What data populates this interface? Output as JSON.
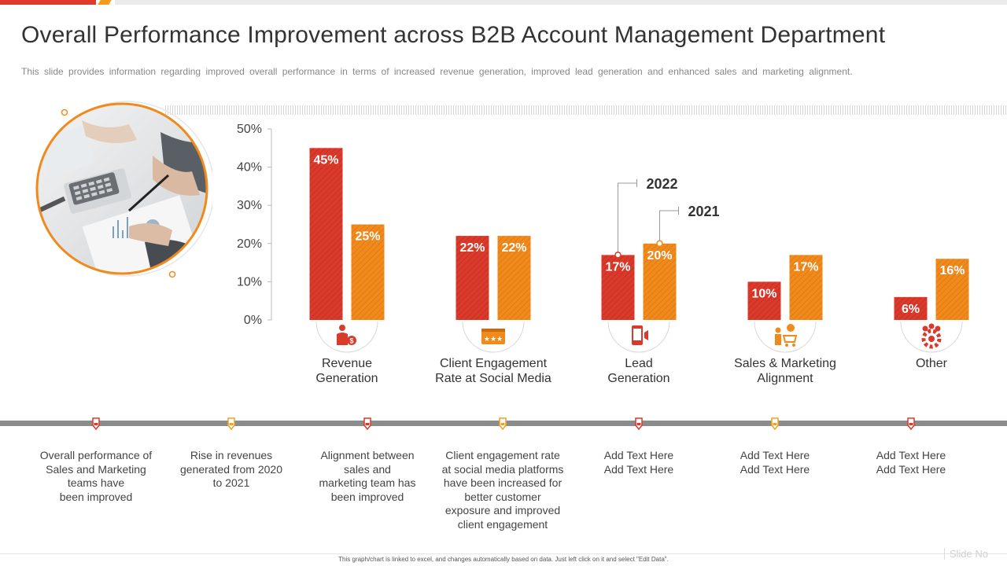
{
  "header": {
    "title": "Overall Performance Improvement across B2B Account Management Department",
    "subtitle": "This slide provides information regarding improved overall performance in terms of increased revenue generation, improved lead generation and enhanced sales and marketing alignment."
  },
  "chart_data": {
    "type": "bar",
    "categories": [
      "Revenue\nGeneration",
      "Client Engagement\nRate at Social Media",
      "Lead\nGeneration",
      "Sales & Marketing\nAlignment",
      "Other"
    ],
    "category_icons": [
      "businessman-money-icon",
      "rating-stars-icon",
      "mobile-marketing-icon",
      "shopping-cart-person-icon",
      "team-gear-icon"
    ],
    "series": [
      {
        "name": "2022",
        "values": [
          45,
          22,
          17,
          10,
          6
        ],
        "color": "#d93a2b"
      },
      {
        "name": "2021",
        "values": [
          25,
          22,
          20,
          17,
          16
        ],
        "color": "#f08a1c"
      }
    ],
    "y_ticks": [
      "0%",
      "10%",
      "20%",
      "30%",
      "40%",
      "50%"
    ],
    "ylim": [
      0,
      50
    ],
    "value_suffix": "%",
    "legend_placement": "callouts above Lead Generation bars"
  },
  "timeline": {
    "items": [
      "Overall performance of\nSales and Marketing\nteams have\nbeen improved",
      "Rise in revenues\ngenerated from 2020\nto 2021",
      "Alignment between\nsales and\nmarketing team has\nbeen improved",
      "Client engagement rate\nat social media platforms\nhave been increased for\nbetter customer\nexposure and improved\nclient engagement",
      "Add Text Here\nAdd Text Here",
      "Add Text Here\nAdd Text Here",
      "Add Text Here\nAdd Text Here"
    ],
    "marker_colors": [
      "#d93a2b",
      "#f0a020",
      "#d93a2b",
      "#f0a020",
      "#d93a2b",
      "#f0a020",
      "#d93a2b"
    ]
  },
  "footer": {
    "note": "This graph/chart is linked to excel, and changes automatically based on data. Just left click on it and select \"Edit Data\".",
    "slide_no": "Slide No"
  }
}
